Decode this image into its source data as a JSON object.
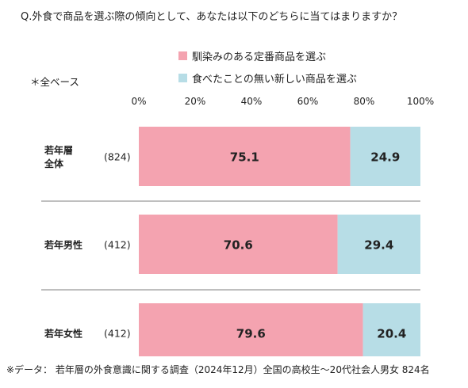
{
  "question": "Q.外食で商品を選ぶ際の傾向として、あなたは以下のどちらに当てはまりますか？",
  "base_note": "＊全ベース",
  "footnote": "※データ：  若年層の外食意識に関する調査（2024年12月）全国の高校生～20代社会人男女  824名",
  "colors": {
    "series_a": "#f4a3b0",
    "series_b": "#b7dde6",
    "divider": "#aaaaaa"
  },
  "chart_data": {
    "type": "bar",
    "orientation": "horizontal",
    "stacked": true,
    "xlim": [
      0,
      100
    ],
    "ticks": [
      "0%",
      "20%",
      "40%",
      "60%",
      "80%",
      "100%"
    ],
    "legend_position": "top",
    "categories": [
      {
        "label_lines": [
          "若年層",
          "全体"
        ],
        "n": "(824)"
      },
      {
        "label_lines": [
          "若年男性"
        ],
        "n": "(412)"
      },
      {
        "label_lines": [
          "若年女性"
        ],
        "n": "(412)"
      }
    ],
    "series": [
      {
        "name": "馴染みのある定番商品を選ぶ",
        "values": [
          75.1,
          70.6,
          79.6
        ]
      },
      {
        "name": "食べたことの無い新しい商品を選ぶ",
        "values": [
          24.9,
          29.4,
          20.4
        ]
      }
    ]
  }
}
